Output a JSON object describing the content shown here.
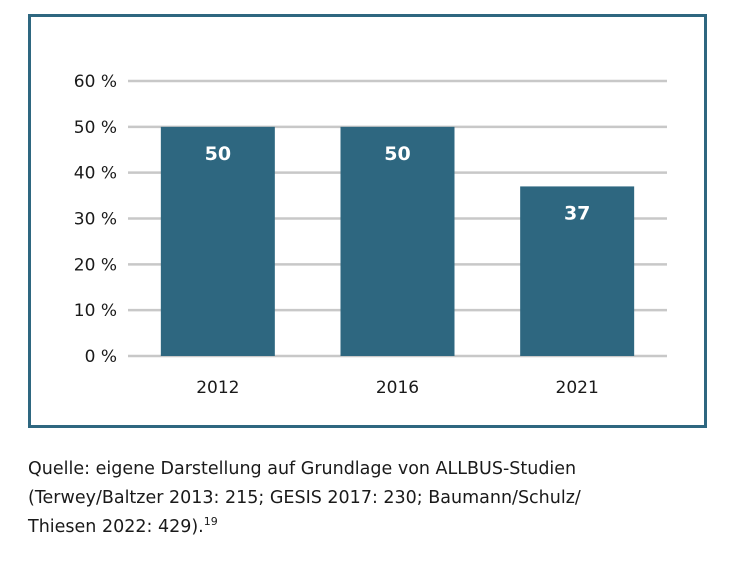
{
  "chart_data": {
    "type": "bar",
    "categories": [
      "2012",
      "2016",
      "2021"
    ],
    "values": [
      50,
      50,
      37
    ],
    "data_labels": [
      "50",
      "50",
      "37"
    ],
    "yticks": [
      "0 %",
      "10 %",
      "20 %",
      "30 %",
      "40 %",
      "50 %",
      "60 %"
    ],
    "ylim": [
      0,
      60
    ],
    "grid": true,
    "title": "",
    "xlabel": "",
    "ylabel": "",
    "colors": {
      "bar": "#2e6780",
      "grid": "#c8c8c8",
      "frame": "#2e6780"
    }
  },
  "caption": {
    "line1": "Quelle: eigene Darstellung auf Grundlage von ALLBUS-Studien",
    "line2": "(Terwey/Baltzer 2013: 215; GESIS 2017: 230; Baumann/Schulz/",
    "line3": "Thiesen 2022: 429).",
    "footnote": "19"
  }
}
